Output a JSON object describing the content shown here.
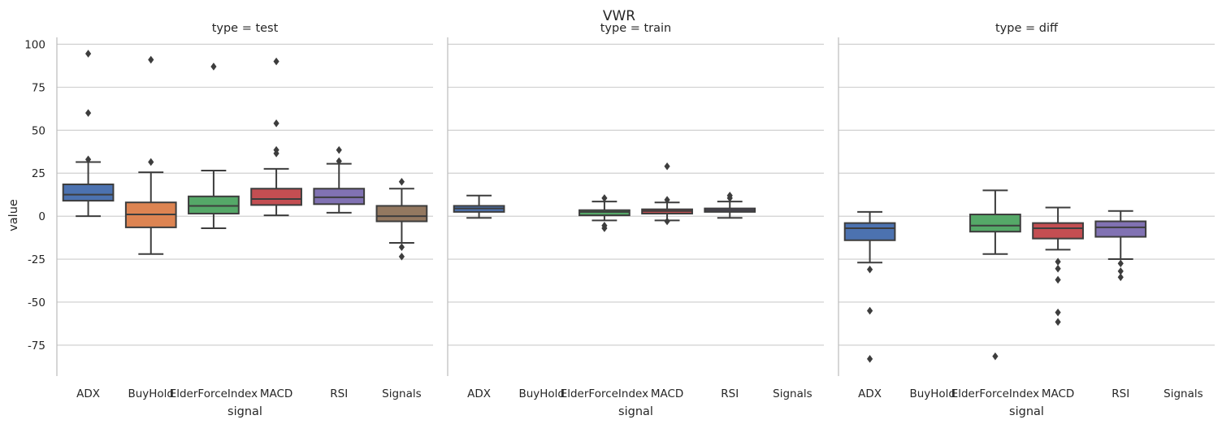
{
  "chart_data": {
    "type": "box",
    "title": "VWR",
    "ylabel": "value",
    "xlabel": "signal",
    "ylim": [
      -93,
      104
    ],
    "yticks": [
      -75,
      -50,
      -25,
      0,
      25,
      50,
      75,
      100
    ],
    "categories": [
      "ADX",
      "BuyHold",
      "ElderForceIndex",
      "MACD",
      "RSI",
      "Signals"
    ],
    "colors": {
      "ADX": "#4c72b0",
      "BuyHold": "#dd8452",
      "ElderForceIndex": "#55a868",
      "MACD": "#c44e52",
      "RSI": "#8172b3",
      "Signals": "#937860"
    },
    "grid": true,
    "facets": [
      {
        "title": "type = test",
        "boxes": [
          {
            "category": "ADX",
            "whislo": 0,
            "q1": 9,
            "med": 12.5,
            "q3": 18.5,
            "whishi": 31.5,
            "fliers": [
              33,
              60,
              94.5
            ]
          },
          {
            "category": "BuyHold",
            "whislo": -22,
            "q1": -6.5,
            "med": 1,
            "q3": 8,
            "whishi": 25.5,
            "fliers": [
              31.5,
              91
            ]
          },
          {
            "category": "ElderForceIndex",
            "whislo": -7,
            "q1": 1.5,
            "med": 6,
            "q3": 11.5,
            "whishi": 26.5,
            "fliers": [
              87
            ]
          },
          {
            "category": "MACD",
            "whislo": 0.5,
            "q1": 6.5,
            "med": 10,
            "q3": 16,
            "whishi": 27.5,
            "fliers": [
              36.5,
              38.5,
              54,
              90
            ]
          },
          {
            "category": "RSI",
            "whislo": 2,
            "q1": 7,
            "med": 11,
            "q3": 16,
            "whishi": 30.5,
            "fliers": [
              32,
              38.5
            ]
          },
          {
            "category": "Signals",
            "whislo": -15.5,
            "q1": -3,
            "med": 0,
            "q3": 6,
            "whishi": 16,
            "fliers": [
              -23.5,
              -18,
              20
            ]
          }
        ]
      },
      {
        "title": "type = train",
        "boxes": [
          {
            "category": "ADX",
            "whislo": -1,
            "q1": 2.5,
            "med": 4.5,
            "q3": 6,
            "whishi": 12,
            "fliers": []
          },
          {
            "category": "ElderForceIndex",
            "whislo": -2.5,
            "q1": 0.5,
            "med": 2.5,
            "q3": 3.5,
            "whishi": 8.5,
            "fliers": [
              -7,
              -5.5,
              10.5
            ]
          },
          {
            "category": "MACD",
            "whislo": -2.5,
            "q1": 1.5,
            "med": 3,
            "q3": 4,
            "whishi": 8,
            "fliers": [
              -3,
              9.5,
              29
            ]
          },
          {
            "category": "RSI",
            "whislo": -1,
            "q1": 2.5,
            "med": 3.5,
            "q3": 4.5,
            "whishi": 8.5,
            "fliers": [
              10.5,
              12
            ]
          }
        ]
      },
      {
        "title": "type = diff",
        "boxes": [
          {
            "category": "ADX",
            "whislo": -27,
            "q1": -14,
            "med": -7,
            "q3": -4,
            "whishi": 2.5,
            "fliers": [
              -31,
              -55,
              -83
            ]
          },
          {
            "category": "ElderForceIndex",
            "whislo": -22,
            "q1": -9,
            "med": -5.5,
            "q3": 1,
            "whishi": 15,
            "fliers": [
              -81.5
            ]
          },
          {
            "category": "MACD",
            "whislo": -19.5,
            "q1": -13,
            "med": -7,
            "q3": -4,
            "whishi": 5,
            "fliers": [
              -26.5,
              -30.5,
              -37,
              -56,
              -61.5
            ]
          },
          {
            "category": "RSI",
            "whislo": -25,
            "q1": -12,
            "med": -6.5,
            "q3": -3,
            "whishi": 3,
            "fliers": [
              -27.5,
              -32,
              -35.5
            ]
          }
        ]
      }
    ]
  }
}
